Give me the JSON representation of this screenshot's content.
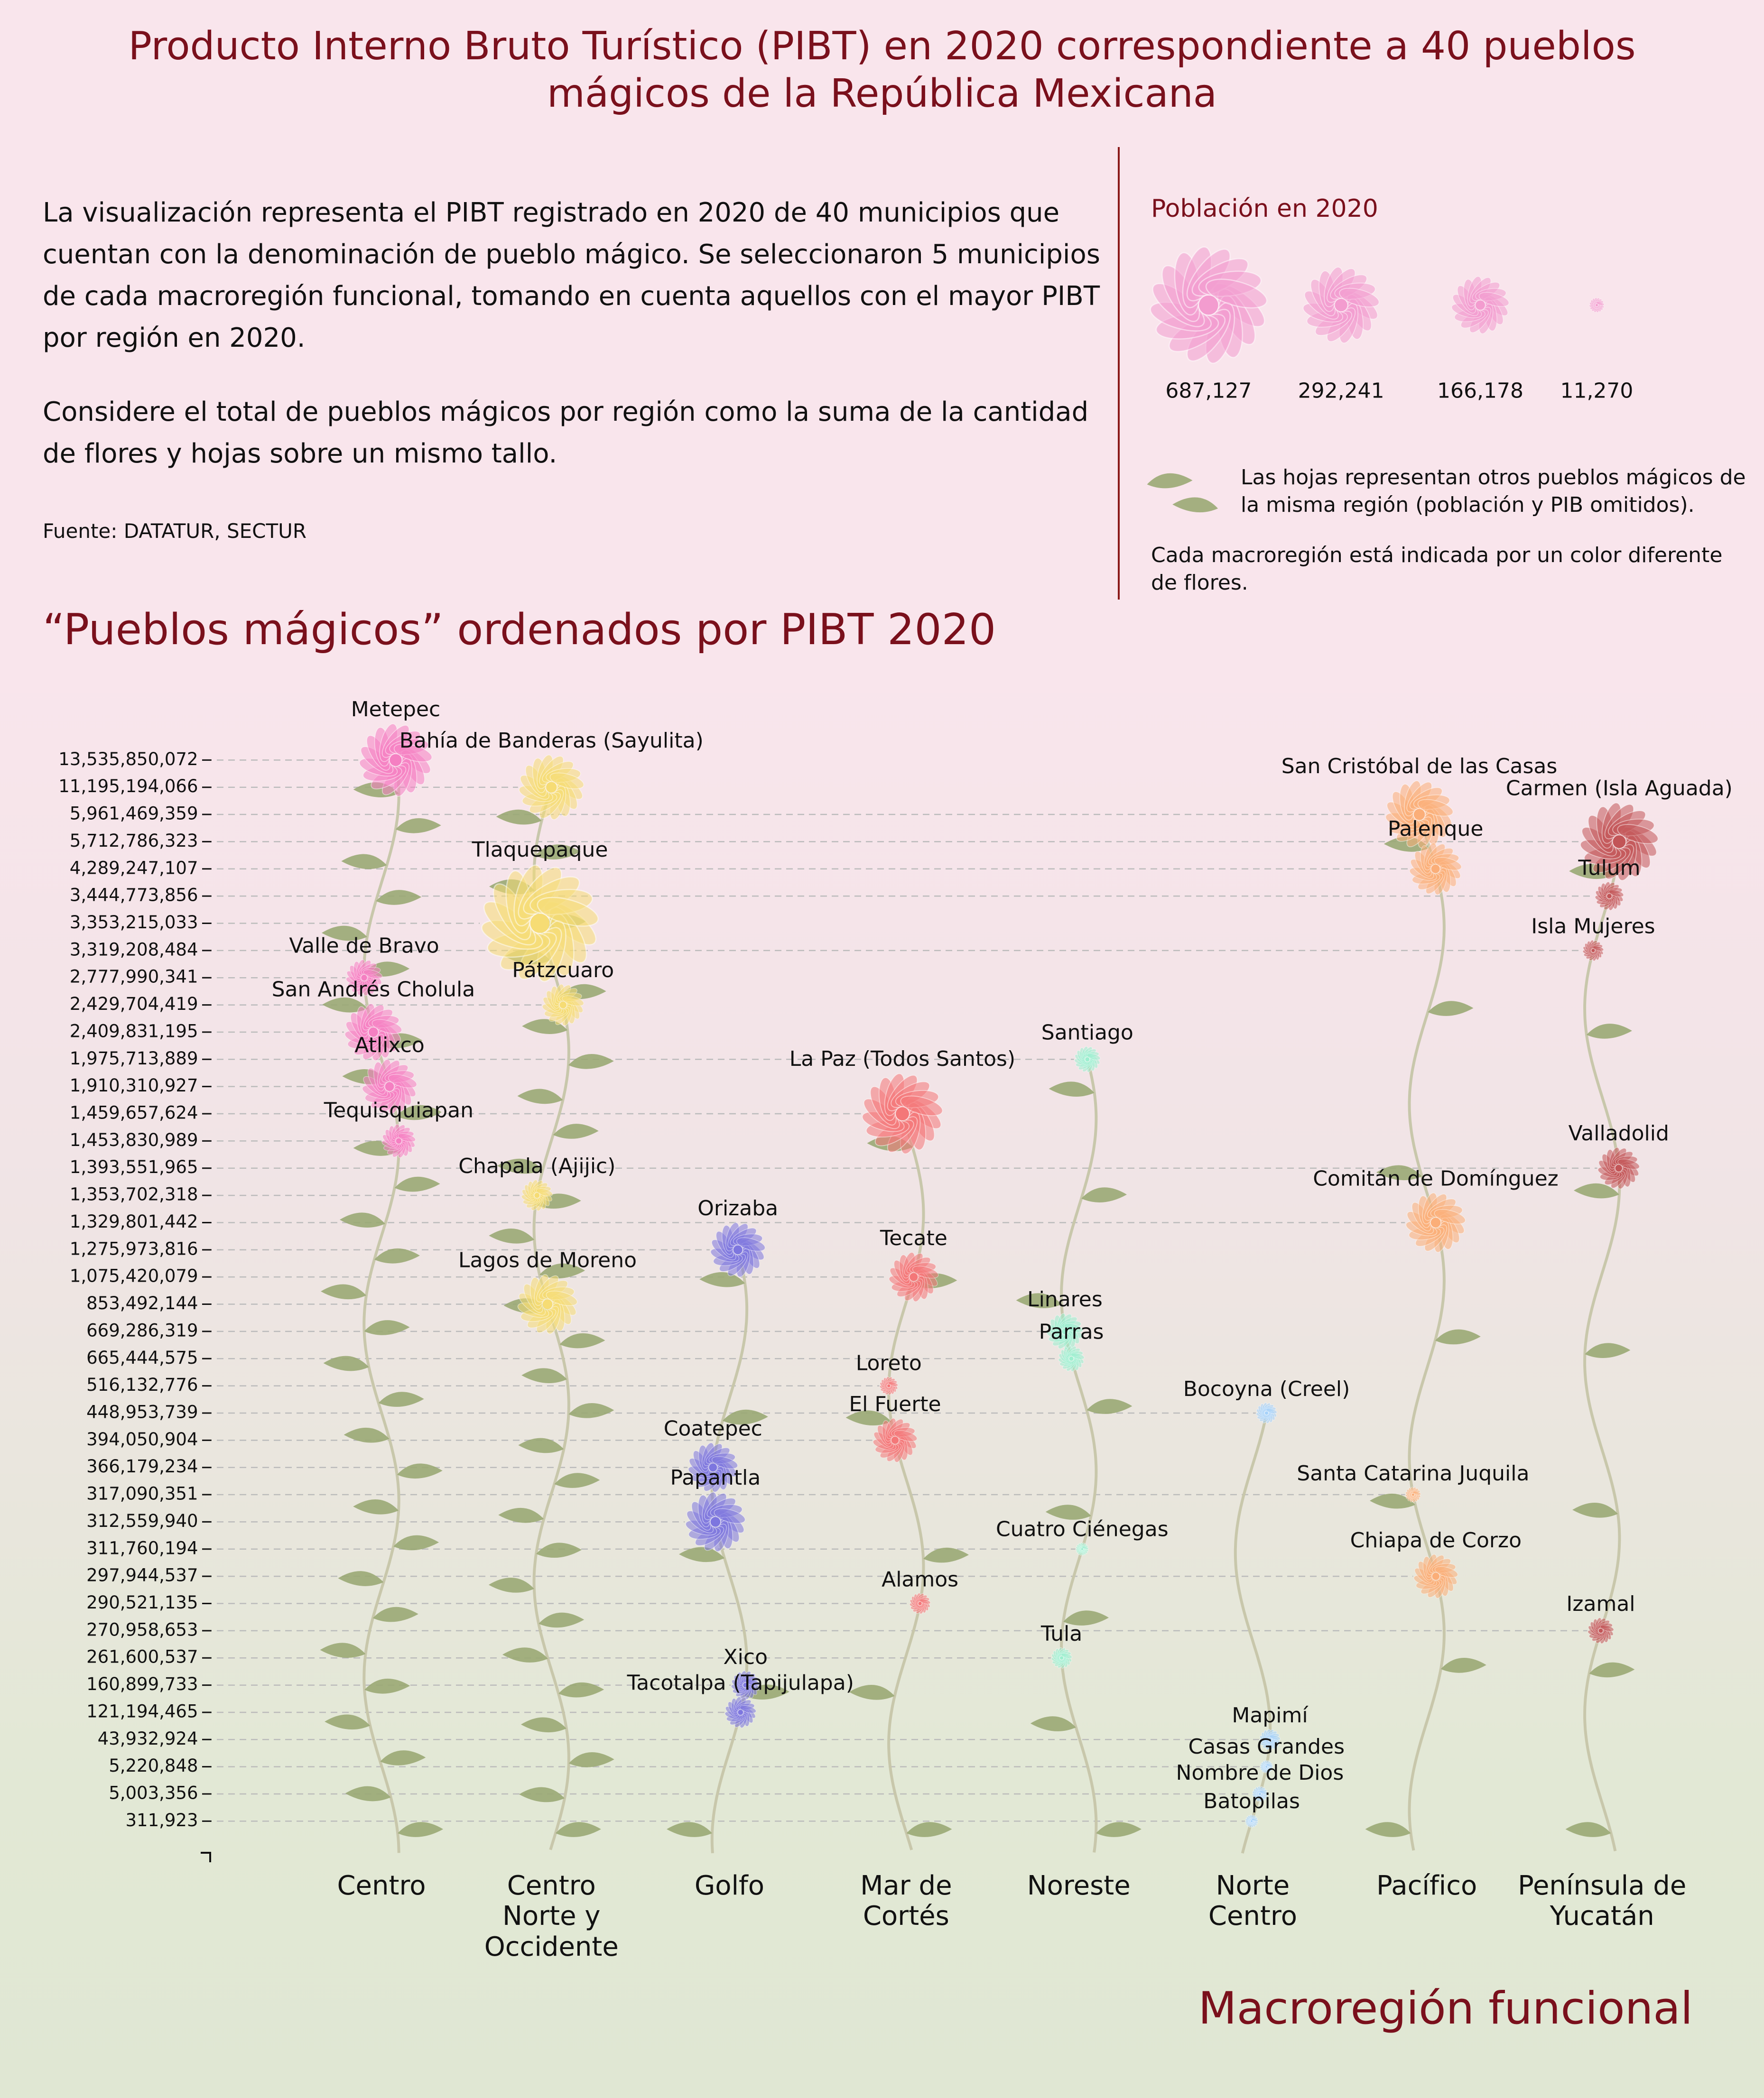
{
  "title": "Producto Interno Bruto Turístico (PIBT) en 2020 correspondiente a 40 pueblos mágicos de la República Mexicana",
  "description": [
    "La visualización representa el PIBT registrado en 2020 de 40 municipios que cuentan con la denominación de pueblo mágico. Se seleccionaron 5 municipios de cada macroregión funcional, tomando en cuenta aquellos con el mayor PIBT por región en 2020.",
    "Considere el total de pueblos mágicos por región como la suma de la cantidad de flores y hojas sobre un mismo tallo."
  ],
  "source": "Fuente: DATATUR, SECTUR",
  "legend": {
    "title": "Población en 2020",
    "color": "#f39ccf",
    "sizes": [
      {
        "value": 687127,
        "label": "687,127"
      },
      {
        "value": 292241,
        "label": "292,241"
      },
      {
        "value": 166178,
        "label": "166,178"
      },
      {
        "value": 11270,
        "label": "11,270"
      }
    ],
    "leaf_note": "Las hojas representan otros pueblos mágicos de la misma región (población y PIB omitidos).",
    "color_note": "Cada macroregión está indicada por un color diferente de flores."
  },
  "chart_data": {
    "type": "flower",
    "title": "“Pueblos mágicos” ordenados por PIBT 2020",
    "x_label": "Macroregión funcional",
    "yticks": [
      {
        "value": 13535850072,
        "label": "13,535,850,072"
      },
      {
        "value": 11195194066,
        "label": "11,195,194,066"
      },
      {
        "value": 5961469359,
        "label": "5,961,469,359"
      },
      {
        "value": 5712786323,
        "label": "5,712,786,323"
      },
      {
        "value": 4289247107,
        "label": "4,289,247,107"
      },
      {
        "value": 3444773856,
        "label": "3,444,773,856"
      },
      {
        "value": 3353215033,
        "label": "3,353,215,033"
      },
      {
        "value": 3319208484,
        "label": "3,319,208,484"
      },
      {
        "value": 2777990341,
        "label": "2,777,990,341"
      },
      {
        "value": 2429704419,
        "label": "2,429,704,419"
      },
      {
        "value": 2409831195,
        "label": "2,409,831,195"
      },
      {
        "value": 1975713889,
        "label": "1,975,713,889"
      },
      {
        "value": 1910310927,
        "label": "1,910,310,927"
      },
      {
        "value": 1459657624,
        "label": "1,459,657,624"
      },
      {
        "value": 1453830989,
        "label": "1,453,830,989"
      },
      {
        "value": 1393551965,
        "label": "1,393,551,965"
      },
      {
        "value": 1353702318,
        "label": "1,353,702,318"
      },
      {
        "value": 1329801442,
        "label": "1,329,801,442"
      },
      {
        "value": 1275973816,
        "label": "1,275,973,816"
      },
      {
        "value": 1075420079,
        "label": "1,075,420,079"
      },
      {
        "value": 853492144,
        "label": "853,492,144"
      },
      {
        "value": 669286319,
        "label": "669,286,319"
      },
      {
        "value": 665444575,
        "label": "665,444,575"
      },
      {
        "value": 516132776,
        "label": "516,132,776"
      },
      {
        "value": 448953739,
        "label": "448,953,739"
      },
      {
        "value": 394050904,
        "label": "394,050,904"
      },
      {
        "value": 366179234,
        "label": "366,179,234"
      },
      {
        "value": 317090351,
        "label": "317,090,351"
      },
      {
        "value": 312559940,
        "label": "312,559,940"
      },
      {
        "value": 311760194,
        "label": "311,760,194"
      },
      {
        "value": 297944537,
        "label": "297,944,537"
      },
      {
        "value": 290521135,
        "label": "290,521,135"
      },
      {
        "value": 270958653,
        "label": "270,958,653"
      },
      {
        "value": 261600537,
        "label": "261,600,537"
      },
      {
        "value": 160899733,
        "label": "160,899,733"
      },
      {
        "value": 121194465,
        "label": "121,194,465"
      },
      {
        "value": 43932924,
        "label": "43,932,924"
      },
      {
        "value": 5220848,
        "label": "5,220,848"
      },
      {
        "value": 5003356,
        "label": "5,003,356"
      },
      {
        "value": 311923,
        "label": "311,923"
      }
    ],
    "series": [
      {
        "name": "Centro",
        "color": "#f57fc2",
        "leaves": 30,
        "labels": [
          "Metepec",
          "Valle de Bravo",
          "San Andrés Cholula",
          "Atlixco",
          "Tequisquiapan"
        ],
        "values": [
          13535850072,
          2777990341,
          2409831195,
          1910310927,
          1453830989
        ],
        "population": [
          266000,
          66000,
          164000,
          150000,
          57000
        ]
      },
      {
        "name": "Centro Norte y Occidente",
        "color": "#f6dc74",
        "leaves": 30,
        "labels": [
          "Bahía de Banderas (Sayulita)",
          "Tlaquepaque",
          "Pátzcuaro",
          "Chapala (Ajijic)",
          "Lagos de Moreno"
        ],
        "values": [
          11195194066,
          3353215033,
          2429704419,
          1353702318,
          853492144
        ],
        "population": [
          212000,
          687000,
          87000,
          49000,
          179000
        ]
      },
      {
        "name": "Golfo",
        "color": "#7d76df",
        "leaves": 5,
        "labels": [
          "Orizaba",
          "Coatepec",
          "Papantla",
          "Xico",
          "Tacotalpa (Tapijulapa)"
        ],
        "values": [
          1275973816,
          366179234,
          312559940,
          160899733,
          121194465
        ],
        "population": [
          150000,
          123000,
          179000,
          41000,
          49000
        ]
      },
      {
        "name": "Mar de Cortés",
        "color": "#f47778",
        "leaves": 6,
        "labels": [
          "La Paz (Todos Santos)",
          "Tecate",
          "Loreto",
          "El Fuerte",
          "Alamos"
        ],
        "values": [
          1459657624,
          1075420079,
          516132776,
          394050904,
          290521135
        ],
        "population": [
          326000,
          123000,
          17000,
          98000,
          22000
        ]
      },
      {
        "name": "Noreste",
        "color": "#9cefcf",
        "leaves": 8,
        "labels": [
          "Santiago",
          "Linares",
          "Parras",
          "Cuatro Ciénegas",
          "Tula"
        ],
        "values": [
          1975713889,
          669286319,
          665444575,
          311760194,
          261600537
        ],
        "population": [
          34000,
          66000,
          34000,
          8500,
          22000
        ]
      },
      {
        "name": "Norte Centro",
        "color": "#a6d2fa",
        "leaves": 0,
        "labels": [
          "Bocoyna (Creel)",
          "Mapimí",
          "Casas Grandes",
          "Nombre de Dios",
          "Batopilas"
        ],
        "values": [
          448953739,
          43932924,
          5220848,
          5003356,
          311923
        ],
        "population": [
          22000,
          22000,
          8500,
          12000,
          8500
        ]
      },
      {
        "name": "Pacífico",
        "color": "#fbae78",
        "leaves": 7,
        "labels": [
          "San Cristóbal de las Casas",
          "Palenque",
          "Comitán de Domínguez",
          "Santa Catarina Juquila",
          "Chiapa de Corzo"
        ],
        "values": [
          5961469359,
          4289247107,
          1329801442,
          317090351,
          297944537
        ],
        "population": [
          230000,
          136000,
          179000,
          12000,
          98000
        ]
      },
      {
        "name": "Península de Yucatán",
        "color": "#c25557",
        "leaves": 7,
        "labels": [
          "Carmen (Isla Aguada)",
          "Tulum",
          "Isla Mujeres",
          "Valladolid",
          "Izamal"
        ],
        "values": [
          5712786323,
          3444773856,
          3319208484,
          1393551965,
          270958653
        ],
        "population": [
          305000,
          41000,
          22000,
          87000,
          34000
        ]
      }
    ]
  }
}
